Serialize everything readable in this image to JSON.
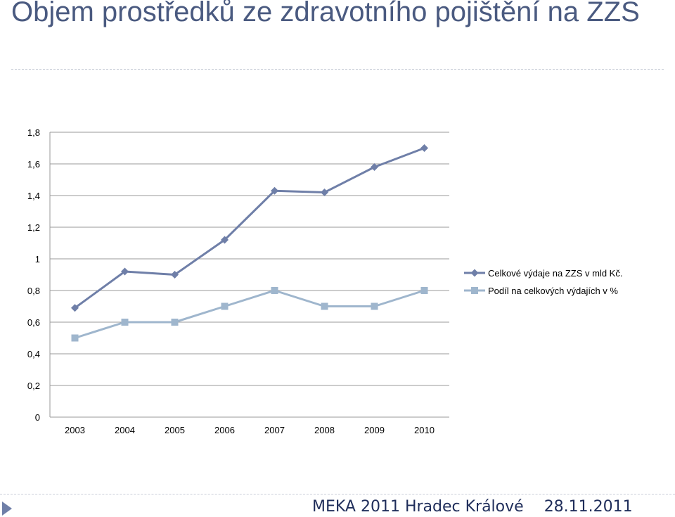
{
  "slide": {
    "title": "Objem prostředků ze zdravotního pojištění na ZZS",
    "footer_event": "MEKA 2011 Hradec Králové",
    "footer_date": "28.11.2011"
  },
  "chart_data": {
    "type": "line",
    "categories": [
      "2003",
      "2004",
      "2005",
      "2006",
      "2007",
      "2008",
      "2009",
      "2010"
    ],
    "series": [
      {
        "name": "Celkové výdaje na ZZS v mld Kč.",
        "values": [
          0.69,
          0.92,
          0.9,
          1.12,
          1.43,
          1.42,
          1.58,
          1.7
        ],
        "color": "#6f7fa8",
        "marker": "diamond"
      },
      {
        "name": "Podíl na celkových výdajích v %",
        "values": [
          0.5,
          0.6,
          0.6,
          0.7,
          0.8,
          0.7,
          0.7,
          0.8
        ],
        "color": "#9fb6cd",
        "marker": "square"
      }
    ],
    "y_ticks": [
      "0",
      "0,2",
      "0,4",
      "0,6",
      "0,8",
      "1",
      "1,2",
      "1,4",
      "1,6",
      "1,8"
    ],
    "ylim": [
      0,
      1.8
    ],
    "grid": true,
    "legend": "right"
  }
}
